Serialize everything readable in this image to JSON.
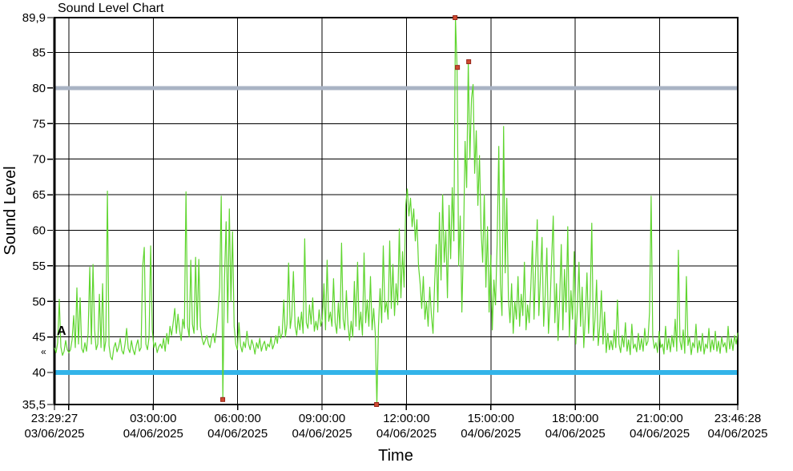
{
  "chart_data": {
    "type": "line",
    "title": "Sound Level Chart",
    "xlabel": "Time",
    "ylabel": "Sound Level",
    "ylim": [
      35.5,
      89.9
    ],
    "duration_hours": 24.2836,
    "x_start": "23:29:27 03/06/2025",
    "x_end": "23:46:28 04/06/2025",
    "sample_interval_hours": 0.057,
    "series_color": "#5fd52f",
    "grid": "on",
    "legend": "none",
    "y_ticks": [
      {
        "value": 89.9,
        "label": "89,9",
        "gridline": false
      },
      {
        "value": 85,
        "label": "85",
        "gridline": true
      },
      {
        "value": 80,
        "label": "80",
        "gridline": true
      },
      {
        "value": 75,
        "label": "75",
        "gridline": true
      },
      {
        "value": 70,
        "label": "70",
        "gridline": true
      },
      {
        "value": 65,
        "label": "65",
        "gridline": true
      },
      {
        "value": 60,
        "label": "60",
        "gridline": true
      },
      {
        "value": 55,
        "label": "55",
        "gridline": true
      },
      {
        "value": 50,
        "label": "50",
        "gridline": true
      },
      {
        "value": 45,
        "label": "45",
        "gridline": true
      },
      {
        "value": 40,
        "label": "40",
        "gridline": true
      },
      {
        "value": 35.5,
        "label": "35,5",
        "gridline": false
      }
    ],
    "x_ticks": [
      {
        "hours": 0,
        "time": "23:29:27",
        "date": "03/06/2025",
        "gridline": false
      },
      {
        "hours": 0.5092,
        "time": "",
        "date": "",
        "gridline": true
      },
      {
        "hours": 3.5092,
        "time": "03:00:00",
        "date": "04/06/2025",
        "gridline": true
      },
      {
        "hours": 6.5092,
        "time": "06:00:00",
        "date": "04/06/2025",
        "gridline": true
      },
      {
        "hours": 9.5092,
        "time": "09:00:00",
        "date": "04/06/2025",
        "gridline": true
      },
      {
        "hours": 12.5092,
        "time": "12:00:00",
        "date": "04/06/2025",
        "gridline": true
      },
      {
        "hours": 15.5092,
        "time": "15:00:00",
        "date": "04/06/2025",
        "gridline": true
      },
      {
        "hours": 18.5092,
        "time": "18:00:00",
        "date": "04/06/2025",
        "gridline": true
      },
      {
        "hours": 21.5092,
        "time": "21:00:00",
        "date": "04/06/2025",
        "gridline": true
      },
      {
        "hours": 24.2836,
        "time": "23:46:28",
        "date": "04/06/2025",
        "gridline": false
      }
    ],
    "reference_lines": [
      {
        "name": "upper-limit",
        "value": 80,
        "color": "#a9b3c4",
        "width": 5
      },
      {
        "name": "lower-limit",
        "value": 40,
        "color": "#33b4e9",
        "width": 6
      }
    ],
    "markers": {
      "fill": "#cf4a30",
      "border": "#96271a",
      "size": 5,
      "points": [
        {
          "hours": 5.98,
          "value": 36.2
        },
        {
          "hours": 11.447,
          "value": 35.5
        },
        {
          "hours": 14.238,
          "value": 89.9
        },
        {
          "hours": 14.323,
          "value": 82.9
        },
        {
          "hours": 14.722,
          "value": 83.7
        }
      ]
    },
    "cursor": {
      "label": "A",
      "hours": 0.17,
      "value": 45.2,
      "arrow_icon": "«"
    },
    "values": [
      43.5,
      42.8,
      44.2,
      50.3,
      43.6,
      42.4,
      43.0,
      44.5,
      43.2,
      42.8,
      43.2,
      44.6,
      48.0,
      43.5,
      51.9,
      44.0,
      50.5,
      43.4,
      42.8,
      44.2,
      43.0,
      45.5,
      54.8,
      44.0,
      55.2,
      46.0,
      43.2,
      44.0,
      51.0,
      43.5,
      52.5,
      43.0,
      44.5,
      65.5,
      43.8,
      42.2,
      41.8,
      43.5,
      44.2,
      42.9,
      43.6,
      44.8,
      43.1,
      42.6,
      44.0,
      46.2,
      43.4,
      42.8,
      44.5,
      43.2,
      42.5,
      43.8,
      44.6,
      43.0,
      43.5,
      54.9,
      57.6,
      44.0,
      43.2,
      45.0,
      57.8,
      46.0,
      43.5,
      44.2,
      42.8,
      43.6,
      44.0,
      43.4,
      44.8,
      43.0,
      45.5,
      44.0,
      46.5,
      45.2,
      47.0,
      49.0,
      45.5,
      48.2,
      46.0,
      44.5,
      47.5,
      46.2,
      65.4,
      46.5,
      45.0,
      55.8,
      46.8,
      45.5,
      56.2,
      46.0,
      55.9,
      46.5,
      44.8,
      43.9,
      44.5,
      45.2,
      44.0,
      43.5,
      44.8,
      45.5,
      44.2,
      46.0,
      48.5,
      52.0,
      64.8,
      36.2,
      53.0,
      61.2,
      47.0,
      63.0,
      50.0,
      59.8,
      46.5,
      44.0,
      43.2,
      47.0,
      43.8,
      42.9,
      44.3,
      43.5,
      45.8,
      44.0,
      43.2,
      44.6,
      43.8,
      42.6,
      44.2,
      43.4,
      44.8,
      43.0,
      43.9,
      44.4,
      43.1,
      44.0,
      43.6,
      44.9,
      43.3,
      44.0,
      45.2,
      44.1,
      46.5,
      44.8,
      45.5,
      50.2,
      45.0,
      46.8,
      55.4,
      46.2,
      48.0,
      54.2,
      46.5,
      45.2,
      47.8,
      46.0,
      48.5,
      45.5,
      58.8,
      47.0,
      46.2,
      49.5,
      46.8,
      50.5,
      45.8,
      47.2,
      46.0,
      48.8,
      46.5,
      47.5,
      52.5,
      46.0,
      55.8,
      47.2,
      48.5,
      46.5,
      53.2,
      47.0,
      45.5,
      49.8,
      46.2,
      58.2,
      47.5,
      46.0,
      51.5,
      46.8,
      44.5,
      47.2,
      45.0,
      52.8,
      46.5,
      55.5,
      46.0,
      48.5,
      45.2,
      56.8,
      47.0,
      50.2,
      46.5,
      53.5,
      46.0,
      49.0,
      45.5,
      35.5,
      46.5,
      51.8,
      47.0,
      57.8,
      48.5,
      50.0,
      47.5,
      58.5,
      49.0,
      55.2,
      48.0,
      52.5,
      49.5,
      60.2,
      50.5,
      57.0,
      52.0,
      63.5,
      65.8,
      62.0,
      64.5,
      60.5,
      63.0,
      58.5,
      61.5,
      55.0,
      52.5,
      49.0,
      53.5,
      47.5,
      50.0,
      46.5,
      52.0,
      48.0,
      45.5,
      52.5,
      58.0,
      48.5,
      62.5,
      53.0,
      65.0,
      55.5,
      60.0,
      50.5,
      63.5,
      56.0,
      66.0,
      58.5,
      89.9,
      82.9,
      55.0,
      62.0,
      48.5,
      58.0,
      72.5,
      66.0,
      83.7,
      70.0,
      78.5,
      80.5,
      68.0,
      74.0,
      63.5,
      70.5,
      60.0,
      55.5,
      65.0,
      52.0,
      60.5,
      48.5,
      56.5,
      46.0,
      53.0,
      49.5,
      58.0,
      71.8,
      52.5,
      48.0,
      74.6,
      54.0,
      64.5,
      50.5,
      47.0,
      52.5,
      45.5,
      50.0,
      47.5,
      53.5,
      46.5,
      51.0,
      48.0,
      55.5,
      46.0,
      49.5,
      47.0,
      52.0,
      58.5,
      47.5,
      55.0,
      61.5,
      48.0,
      53.5,
      59.0,
      46.5,
      51.0,
      57.5,
      45.5,
      49.5,
      56.0,
      62.0,
      47.0,
      52.5,
      44.5,
      50.5,
      58.0,
      46.0,
      54.5,
      48.5,
      60.5,
      45.0,
      51.5,
      47.5,
      57.0,
      44.0,
      49.0,
      55.5,
      46.5,
      52.0,
      43.5,
      48.0,
      54.0,
      45.5,
      50.5,
      61.0,
      44.5,
      47.5,
      53.0,
      43.8,
      46.5,
      51.5,
      44.0,
      48.5,
      42.8,
      45.5,
      43.2,
      44.5,
      43.2,
      46.0,
      43.5,
      50.2,
      44.0,
      42.8,
      45.2,
      43.6,
      47.0,
      43.0,
      44.6,
      42.5,
      46.8,
      43.4,
      44.0,
      42.9,
      45.5,
      43.2,
      44.8,
      43.0,
      46.2,
      43.8,
      44.4,
      48.5,
      64.8,
      45.0,
      43.4,
      44.2,
      42.8,
      45.8,
      43.5,
      44.0,
      42.6,
      46.5,
      43.2,
      44.8,
      42.9,
      45.2,
      43.6,
      47.5,
      43.0,
      57.2,
      44.5,
      43.2,
      46.0,
      42.7,
      53.5,
      43.8,
      45.0,
      42.5,
      44.2,
      43.5,
      46.8,
      42.8,
      44.5,
      43.0,
      45.5,
      42.6,
      44.0,
      43.4,
      46.2,
      42.9,
      44.6,
      43.2,
      45.8,
      43.0,
      44.4,
      42.7,
      45.0,
      43.6,
      44.2,
      42.8,
      46.5,
      43.3,
      44.8,
      43.1,
      45.2,
      44.0,
      45.6
    ]
  }
}
